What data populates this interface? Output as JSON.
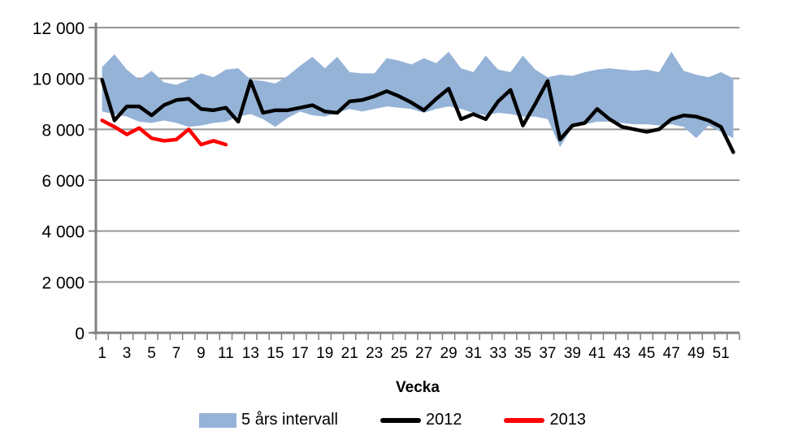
{
  "axes": {
    "x_title": "Vecka",
    "y_ticks": [
      {
        "value": 0,
        "label": "0"
      },
      {
        "value": 2000,
        "label": "2 000"
      },
      {
        "value": 4000,
        "label": "4 000"
      },
      {
        "value": 6000,
        "label": "6 000"
      },
      {
        "value": 8000,
        "label": "8 000"
      },
      {
        "value": 10000,
        "label": "10 000"
      },
      {
        "value": 12000,
        "label": "12 000"
      }
    ],
    "x_ticks": [
      {
        "value": 1,
        "label": "1"
      },
      {
        "value": 3,
        "label": "3"
      },
      {
        "value": 5,
        "label": "5"
      },
      {
        "value": 7,
        "label": "7"
      },
      {
        "value": 9,
        "label": "9"
      },
      {
        "value": 11,
        "label": "11"
      },
      {
        "value": 13,
        "label": "13"
      },
      {
        "value": 15,
        "label": "15"
      },
      {
        "value": 17,
        "label": "17"
      },
      {
        "value": 19,
        "label": "19"
      },
      {
        "value": 21,
        "label": "21"
      },
      {
        "value": 23,
        "label": "23"
      },
      {
        "value": 25,
        "label": "25"
      },
      {
        "value": 27,
        "label": "27"
      },
      {
        "value": 29,
        "label": "29"
      },
      {
        "value": 31,
        "label": "31"
      },
      {
        "value": 33,
        "label": "33"
      },
      {
        "value": 35,
        "label": "35"
      },
      {
        "value": 37,
        "label": "37"
      },
      {
        "value": 39,
        "label": "39"
      },
      {
        "value": 41,
        "label": "41"
      },
      {
        "value": 43,
        "label": "43"
      },
      {
        "value": 45,
        "label": "45"
      },
      {
        "value": 47,
        "label": "47"
      },
      {
        "value": 49,
        "label": "49"
      },
      {
        "value": 51,
        "label": "51"
      }
    ]
  },
  "legend": {
    "items": [
      {
        "label": "5 års intervall",
        "swatch": "band",
        "color": "#95B3D7"
      },
      {
        "label": "2012",
        "swatch": "line",
        "color": "#000000"
      },
      {
        "label": "2013",
        "swatch": "line",
        "color": "#FF0000"
      }
    ]
  },
  "colors": {
    "band": "#95B3D7",
    "line_2012": "#000000",
    "line_2013": "#FF0000",
    "gridline": "#969696",
    "axis": "#808080",
    "text": "#000000",
    "background": "#FFFFFF"
  },
  "chart_data": {
    "type": "line",
    "title": "",
    "xlabel": "Vecka",
    "ylabel": "",
    "ylim": [
      0,
      12000
    ],
    "y_tick_step": 2000,
    "grid": "horizontal",
    "legend_position": "bottom",
    "x": [
      1,
      2,
      3,
      4,
      5,
      6,
      7,
      8,
      9,
      10,
      11,
      12,
      13,
      14,
      15,
      16,
      17,
      18,
      19,
      20,
      21,
      22,
      23,
      24,
      25,
      26,
      27,
      28,
      29,
      30,
      31,
      32,
      33,
      34,
      35,
      36,
      37,
      38,
      39,
      40,
      41,
      42,
      43,
      44,
      45,
      46,
      47,
      48,
      49,
      50,
      51,
      52
    ],
    "series": [
      {
        "name": "5 års intervall",
        "type": "band",
        "color": "#95B3D7",
        "upper": [
          10450,
          10950,
          10350,
          9950,
          10300,
          9850,
          9750,
          9950,
          10200,
          10050,
          10350,
          10400,
          9950,
          9900,
          9800,
          10100,
          10500,
          10850,
          10400,
          10850,
          10250,
          10200,
          10200,
          10800,
          10700,
          10550,
          10800,
          10600,
          11050,
          10400,
          10250,
          10900,
          10350,
          10250,
          10900,
          10350,
          10050,
          10150,
          10100,
          10250,
          10350,
          10400,
          10350,
          10300,
          10350,
          10250,
          11050,
          10300,
          10150,
          10050,
          10250,
          10000
        ],
        "lower": [
          8700,
          8600,
          8500,
          8300,
          8250,
          8350,
          8250,
          8100,
          8150,
          8250,
          8300,
          8500,
          8600,
          8400,
          8100,
          8450,
          8700,
          8550,
          8500,
          8650,
          8800,
          8700,
          8800,
          8900,
          8850,
          8800,
          8650,
          8800,
          8900,
          8800,
          8650,
          8550,
          8650,
          8600,
          8500,
          8500,
          8400,
          7300,
          8100,
          8200,
          8300,
          8300,
          8250,
          8200,
          8200,
          8150,
          8200,
          8100,
          7650,
          8150,
          7900,
          7650
        ]
      },
      {
        "name": "2012",
        "type": "line",
        "color": "#000000",
        "values": [
          9950,
          8350,
          8900,
          8900,
          8550,
          8950,
          9150,
          9200,
          8800,
          8750,
          8850,
          8300,
          9900,
          8650,
          8750,
          8750,
          8850,
          8950,
          8700,
          8650,
          9100,
          9150,
          9300,
          9500,
          9300,
          9050,
          8750,
          9200,
          9600,
          8400,
          8600,
          8400,
          9100,
          9550,
          8150,
          9000,
          9900,
          7600,
          8150,
          8250,
          8800,
          8400,
          8100,
          8000,
          7900,
          8000,
          8400,
          8550,
          8500,
          8350,
          8100,
          7100
        ]
      },
      {
        "name": "2013",
        "type": "line",
        "color": "#FF0000",
        "x": [
          1,
          2,
          3,
          4,
          5,
          6,
          7,
          8,
          9,
          10,
          11
        ],
        "values": [
          8350,
          8100,
          7800,
          8050,
          7650,
          7550,
          7600,
          8000,
          7400,
          7550,
          7400
        ]
      }
    ]
  }
}
